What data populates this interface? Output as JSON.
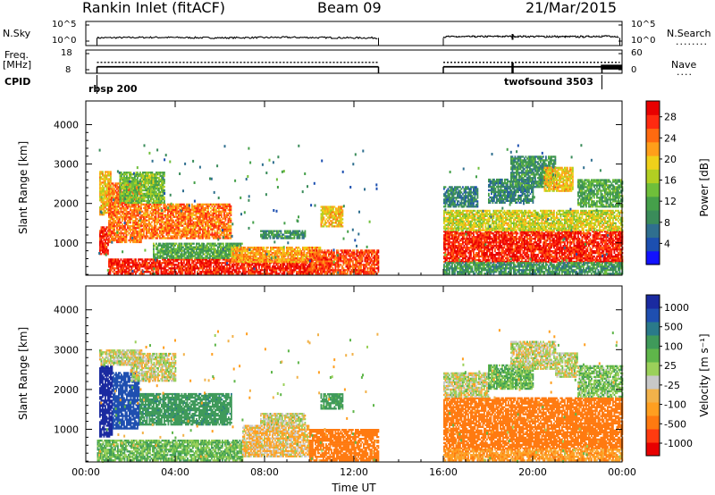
{
  "header": {
    "title": "Rankin Inlet (fitACF)",
    "beam": "Beam 09",
    "date": "21/Mar/2015"
  },
  "labels": {
    "nsky": "N.Sky",
    "nsearch": "N.Search",
    "nsearch_line": "........",
    "freq_line1": "Freq.",
    "freq_line2": "[MHz]",
    "nave": "Nave",
    "nave_line": "....",
    "cpid": "CPID",
    "cpid_mode1": "rbsp 200",
    "cpid_mode2": "twofsound 3503",
    "xlabel": "Time UT",
    "power_colorbar_label": "Power [dB]",
    "velocity_colorbar_label": "Velocity [m s⁻¹]"
  },
  "chart_data": [
    {
      "type": "line",
      "name": "noise-panel",
      "left_axis_ticks": [
        "10^5",
        "10^0"
      ],
      "right_axis_ticks": [
        "10^5",
        "10^0"
      ],
      "xlim_hours": [
        0,
        24
      ],
      "data_gap_hours": [
        13.1,
        16.0
      ],
      "series": [
        {
          "x": [
            0.5,
            3,
            6,
            9,
            12,
            13.1,
            16,
            19,
            22,
            23.5
          ],
          "y": [
            1.6,
            1.7,
            1.6,
            1.7,
            1.6,
            1.6,
            1.8,
            1.9,
            1.8,
            2.0
          ]
        }
      ]
    },
    {
      "type": "line",
      "name": "freq-nave-panel",
      "left_axis_ticks": [
        "18",
        "8"
      ],
      "right_axis_ticks": [
        "60",
        "0"
      ],
      "ylim": [
        8,
        18
      ],
      "y2lim": [
        0,
        60
      ],
      "xlim_hours": [
        0,
        24
      ],
      "data_gap_hours": [
        13.1,
        16.0
      ],
      "series": [
        {
          "x": [
            0.5,
            13.1,
            16,
            23.1
          ],
          "y": [
            10.8,
            10.8,
            10.8,
            10.8
          ]
        },
        {
          "x": [
            0.5,
            13.1,
            16,
            23.9
          ],
          "y": [
            12.7,
            12.7,
            12.7,
            12.7
          ]
        }
      ]
    },
    {
      "type": "heatmap",
      "name": "power-panel",
      "ylabel": "Slant Range [km]",
      "xlabel": "",
      "xlim_hours": [
        0,
        24
      ],
      "ylim": [
        180,
        4600
      ],
      "x_ticks": [
        "00:00",
        "04:00",
        "08:00",
        "12:00",
        "16:00",
        "20:00",
        "00:00"
      ],
      "y_ticks": [
        1000,
        2000,
        3000,
        4000
      ],
      "colorbar_ticks": [
        4,
        8,
        12,
        16,
        20,
        24,
        28
      ],
      "colorbar_range": [
        0,
        31
      ],
      "data_gap_hours": [
        13.1,
        16.0
      ],
      "regions": [
        {
          "t0": 0.6,
          "t1": 1.0,
          "r0": 700,
          "r1": 1400,
          "v": 28
        },
        {
          "t0": 0.6,
          "t1": 1.1,
          "r0": 1700,
          "r1": 2800,
          "v": 20
        },
        {
          "t0": 1.0,
          "t1": 2.5,
          "r0": 1000,
          "r1": 2500,
          "v": 24
        },
        {
          "t0": 2.5,
          "t1": 6.5,
          "r0": 1100,
          "r1": 2000,
          "v": 24
        },
        {
          "t0": 1.5,
          "t1": 3.5,
          "r0": 2000,
          "r1": 2800,
          "v": 14
        },
        {
          "t0": 2.5,
          "t1": 3.0,
          "r0": 2500,
          "r1": 2700,
          "v": 16
        },
        {
          "t0": 1.0,
          "t1": 10.0,
          "r0": 200,
          "r1": 600,
          "v": 28
        },
        {
          "t0": 3.0,
          "t1": 7.0,
          "r0": 600,
          "r1": 1000,
          "v": 12
        },
        {
          "t0": 6.5,
          "t1": 10.5,
          "r0": 500,
          "r1": 900,
          "v": 22
        },
        {
          "t0": 7.8,
          "t1": 9.8,
          "r0": 1100,
          "r1": 1300,
          "v": 10
        },
        {
          "t0": 10.5,
          "t1": 11.5,
          "r0": 1400,
          "r1": 1900,
          "v": 20
        },
        {
          "t0": 10.0,
          "t1": 13.1,
          "r0": 200,
          "r1": 800,
          "v": 26
        },
        {
          "t0": 16.0,
          "t1": 24.0,
          "r0": 500,
          "r1": 1300,
          "v": 28
        },
        {
          "t0": 16.0,
          "t1": 24.0,
          "r0": 1300,
          "r1": 1800,
          "v": 18
        },
        {
          "t0": 16.0,
          "t1": 17.5,
          "r0": 1900,
          "r1": 2400,
          "v": 8
        },
        {
          "t0": 18.0,
          "t1": 20.0,
          "r0": 2000,
          "r1": 2600,
          "v": 8
        },
        {
          "t0": 19.0,
          "t1": 21.0,
          "r0": 2400,
          "r1": 3200,
          "v": 10
        },
        {
          "t0": 20.5,
          "t1": 21.8,
          "r0": 2300,
          "r1": 2900,
          "v": 20
        },
        {
          "t0": 22.0,
          "t1": 24.0,
          "r0": 1900,
          "r1": 2600,
          "v": 12
        },
        {
          "t0": 16.0,
          "t1": 24.0,
          "r0": 200,
          "r1": 500,
          "v": 10
        }
      ]
    },
    {
      "type": "heatmap",
      "name": "velocity-panel",
      "ylabel": "Slant Range [km]",
      "xlabel": "Time UT",
      "xlim_hours": [
        0,
        24
      ],
      "ylim": [
        180,
        4600
      ],
      "x_ticks": [
        "00:00",
        "04:00",
        "08:00",
        "12:00",
        "16:00",
        "20:00",
        "00:00"
      ],
      "y_ticks": [
        1000,
        2000,
        3000,
        4000
      ],
      "colorbar_ticks": [
        1000,
        500,
        100,
        25,
        -25,
        -100,
        -500,
        -1000
      ],
      "data_gap_hours": [
        13.1,
        16.0
      ],
      "regions": [
        {
          "t0": 0.6,
          "t1": 1.2,
          "r0": 800,
          "r1": 2600,
          "v": 1000
        },
        {
          "t0": 1.2,
          "t1": 2.4,
          "r0": 1000,
          "r1": 2400,
          "v": 700
        },
        {
          "t0": 2.4,
          "t1": 6.5,
          "r0": 1100,
          "r1": 1900,
          "v": 200
        },
        {
          "t0": 2.0,
          "t1": 4.0,
          "r0": 2200,
          "r1": 2900,
          "v": 10
        },
        {
          "t0": 0.6,
          "t1": 2.5,
          "r0": 2600,
          "r1": 3000,
          "v": 10
        },
        {
          "t0": 0.5,
          "t1": 7.0,
          "r0": 200,
          "r1": 700,
          "v": 80
        },
        {
          "t0": 7.0,
          "t1": 10.0,
          "r0": 300,
          "r1": 1100,
          "v": -30
        },
        {
          "t0": 7.8,
          "t1": 9.8,
          "r0": 1100,
          "r1": 1400,
          "v": 10
        },
        {
          "t0": 10.0,
          "t1": 13.1,
          "r0": 200,
          "r1": 1000,
          "v": -200
        },
        {
          "t0": 10.5,
          "t1": 11.5,
          "r0": 1500,
          "r1": 1900,
          "v": 150
        },
        {
          "t0": 16.0,
          "t1": 24.0,
          "r0": 500,
          "r1": 1800,
          "v": -200
        },
        {
          "t0": 16.0,
          "t1": 18.0,
          "r0": 1800,
          "r1": 2400,
          "v": 10
        },
        {
          "t0": 18.0,
          "t1": 20.0,
          "r0": 2000,
          "r1": 2600,
          "v": 80
        },
        {
          "t0": 19.0,
          "t1": 21.0,
          "r0": 2500,
          "r1": 3200,
          "v": 10
        },
        {
          "t0": 21.0,
          "t1": 22.0,
          "r0": 2300,
          "r1": 2900,
          "v": 10
        },
        {
          "t0": 22.0,
          "t1": 24.0,
          "r0": 1800,
          "r1": 2600,
          "v": 60
        },
        {
          "t0": 16.0,
          "t1": 24.0,
          "r0": 200,
          "r1": 500,
          "v": -80
        }
      ]
    }
  ],
  "colors": {
    "power_scale": [
      "#1212ff",
      "#1c4fb0",
      "#2f6f8f",
      "#3a8c5a",
      "#45a04a",
      "#6fbf3a",
      "#b2cf22",
      "#efd01a",
      "#ff9f1a",
      "#ff6a10",
      "#ff2a10",
      "#e80000"
    ],
    "velocity_scale": [
      "#e80000",
      "#ff3b10",
      "#ff7a10",
      "#ff9f20",
      "#f2b24a",
      "#c8c8c8",
      "#9bd05a",
      "#5fb64a",
      "#3f9a5a",
      "#2a7a8a",
      "#1f4fb0",
      "#1a2aa0"
    ]
  }
}
